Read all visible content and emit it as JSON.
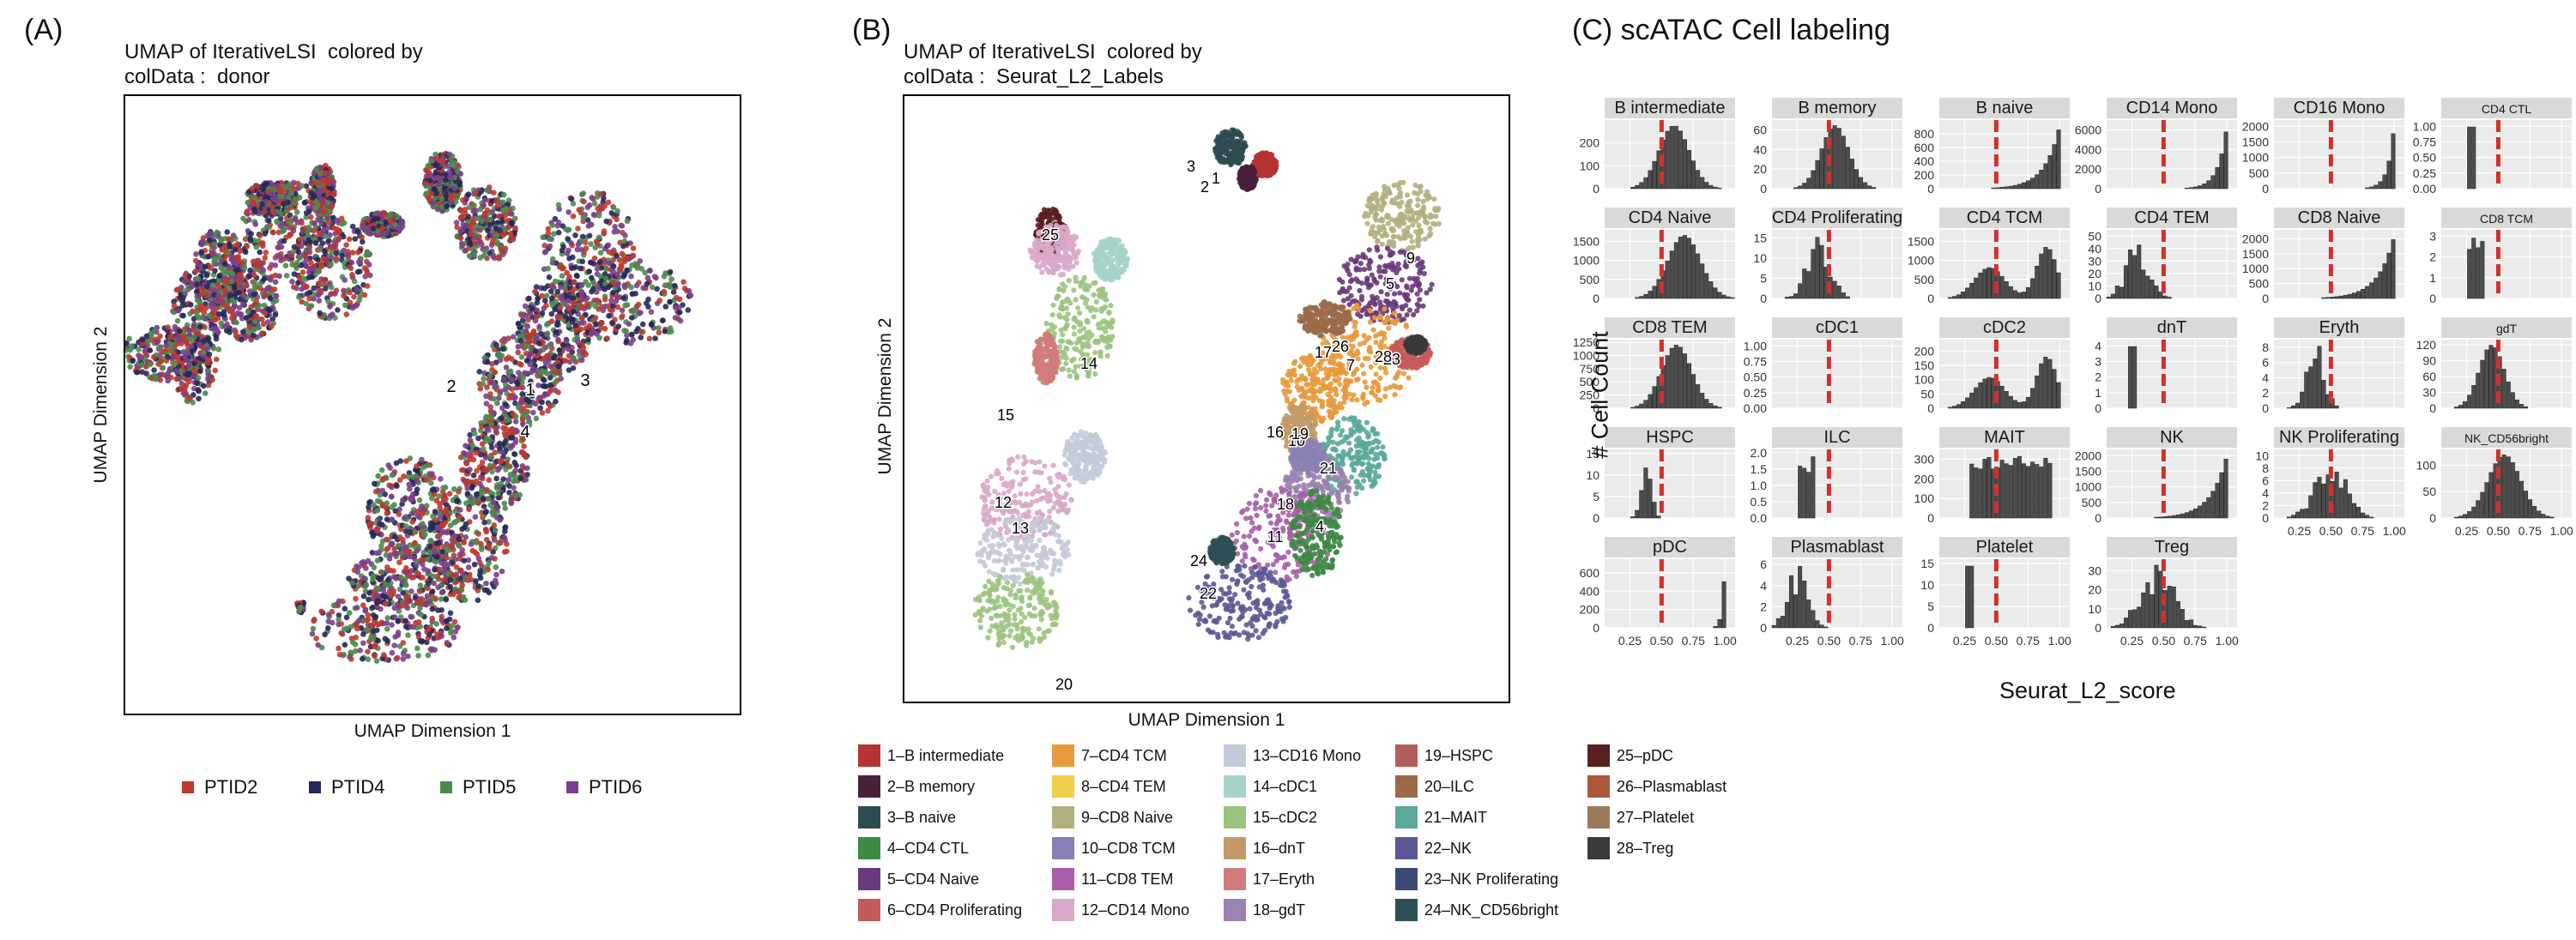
{
  "panels": {
    "a_label": "(A)",
    "b_label": "(B)",
    "c_label": "(C) scATAC Cell labeling",
    "a_title": "UMAP of IterativeLSI  colored by\ncolData :  donor",
    "b_title": "UMAP of IterativeLSI  colored by\ncolData :  Seurat_L2_Labels"
  },
  "axes": {
    "umap_x": "UMAP Dimension 1",
    "umap_y": "UMAP Dimension 2",
    "hist_y": "# Cell Count",
    "hist_x": "Seurat_L2_score"
  },
  "donor_legend": [
    {
      "label": "PTID2",
      "color": "#c0392b"
    },
    {
      "label": "PTID4",
      "color": "#23295a"
    },
    {
      "label": "PTID5",
      "color": "#4b8a4c"
    },
    {
      "label": "PTID6",
      "color": "#7a3f8c"
    }
  ],
  "umap_a_labels": [
    "1",
    "2",
    "3",
    "4"
  ],
  "umap_b_labels": [
    "1",
    "2",
    "3",
    "4",
    "5",
    "7",
    "9",
    "10",
    "11",
    "12",
    "13",
    "14",
    "15",
    "16",
    "17",
    "18",
    "19",
    "20",
    "21",
    "22",
    "23",
    "24",
    "25",
    "26",
    "28"
  ],
  "celltype_legend": [
    {
      "label": "1–B intermediate",
      "color": "#b73232"
    },
    {
      "label": "2–B memory",
      "color": "#4a1f3a"
    },
    {
      "label": "3–B naive",
      "color": "#2f4b52"
    },
    {
      "label": "4–CD4 CTL",
      "color": "#3d8a43"
    },
    {
      "label": "5–CD4 Naive",
      "color": "#6a3a7a"
    },
    {
      "label": "6–CD4 Proliferating",
      "color": "#c45a5a"
    },
    {
      "label": "7–CD4 TCM",
      "color": "#e89a3c"
    },
    {
      "label": "8–CD4 TEM",
      "color": "#f0d04a"
    },
    {
      "label": "9–CD8 Naive",
      "color": "#b3b07f"
    },
    {
      "label": "10–CD8 TCM",
      "color": "#8a7fb5"
    },
    {
      "label": "11–CD8 TEM",
      "color": "#a85ea8"
    },
    {
      "label": "12–CD14 Mono",
      "color": "#d9a8c9"
    },
    {
      "label": "13–CD16 Mono",
      "color": "#c3cbd8"
    },
    {
      "label": "14–cDC1",
      "color": "#a6d3c9"
    },
    {
      "label": "15–cDC2",
      "color": "#9bc47f"
    },
    {
      "label": "16–dnT",
      "color": "#c29a6a"
    },
    {
      "label": "17–Eryth",
      "color": "#d17c7c"
    },
    {
      "label": "18–gdT",
      "color": "#9a83b0"
    },
    {
      "label": "19–HSPC",
      "color": "#b3605a"
    },
    {
      "label": "20–ILC",
      "color": "#9a6a4a"
    },
    {
      "label": "21–MAIT",
      "color": "#5aa89a"
    },
    {
      "label": "22–NK",
      "color": "#5a5a95"
    },
    {
      "label": "23–NK Proliferating",
      "color": "#3a4a75"
    },
    {
      "label": "24–NK_CD56bright",
      "color": "#2d4f55"
    },
    {
      "label": "25–pDC",
      "color": "#5a1f1f"
    },
    {
      "label": "26–Plasmablast",
      "color": "#a85a3a"
    },
    {
      "label": "27–Platelet",
      "color": "#9a7a5a"
    },
    {
      "label": "28–Treg",
      "color": "#3a3a3a"
    }
  ],
  "chart_data": {
    "type": "bar",
    "xlabel": "Seurat_L2_score",
    "ylabel": "# Cell Count",
    "x_ticks": [
      "0.25",
      "0.50",
      "0.75",
      "1.00"
    ],
    "threshold": 0.5,
    "facets": [
      {
        "name": "B intermediate",
        "ymax": 300,
        "yticks": [
          "0",
          "100",
          "200"
        ],
        "peak": 0.6,
        "width": 0.12,
        "shape": "normal",
        "xticks": false
      },
      {
        "name": "B memory",
        "ymax": 70,
        "yticks": [
          "0",
          "20",
          "40",
          "60"
        ],
        "peak": 0.55,
        "width": 0.11,
        "shape": "normal",
        "xticks": false
      },
      {
        "name": "B naive",
        "ymax": 1000,
        "yticks": [
          "0",
          "200",
          "400",
          "600",
          "800"
        ],
        "peak": 0.98,
        "width": 0.12,
        "shape": "right",
        "xticks": false
      },
      {
        "name": "CD14 Mono",
        "ymax": 7000,
        "yticks": [
          "0",
          "2000",
          "4000",
          "6000"
        ],
        "peak": 0.99,
        "width": 0.07,
        "shape": "right",
        "xticks": false
      },
      {
        "name": "CD16 Mono",
        "ymax": 2200,
        "yticks": [
          "0",
          "500",
          "1000",
          "1500",
          "2000"
        ],
        "peak": 0.99,
        "width": 0.05,
        "shape": "right",
        "xticks": false
      },
      {
        "name": "CD4 CTL",
        "ymax": 1.1,
        "yticks": [
          "0.00",
          "0.25",
          "0.50",
          "0.75",
          "1.00"
        ],
        "peak": 0.28,
        "width": 0.005,
        "shape": "single",
        "xticks": false,
        "small": true
      },
      {
        "name": "CD4 Naive",
        "ymax": 1800,
        "yticks": [
          "0",
          "500",
          "1000",
          "1500"
        ],
        "peak": 0.68,
        "width": 0.13,
        "shape": "normal",
        "xticks": false
      },
      {
        "name": "CD4 Proliferating",
        "ymax": 17,
        "yticks": [
          "0",
          "5",
          "10",
          "15"
        ],
        "peak": 0.42,
        "width": 0.09,
        "shape": "rough",
        "xticks": false
      },
      {
        "name": "CD4 TCM",
        "ymax": 1800,
        "yticks": [
          "0",
          "500",
          "1000",
          "1500"
        ],
        "peak": 0.75,
        "width": 0.2,
        "shape": "bimodal",
        "xticks": false
      },
      {
        "name": "CD4 TEM",
        "ymax": 55,
        "yticks": [
          "0",
          "10",
          "20",
          "30",
          "40",
          "50"
        ],
        "peak": 0.3,
        "width": 0.09,
        "shape": "rough",
        "xticks": false
      },
      {
        "name": "CD8 Naive",
        "ymax": 2300,
        "yticks": [
          "0",
          "500",
          "1000",
          "1500",
          "2000"
        ],
        "peak": 0.97,
        "width": 0.13,
        "shape": "right",
        "xticks": false
      },
      {
        "name": "CD8 TCM",
        "ymax": 3.3,
        "yticks": [
          "0",
          "1",
          "2",
          "3"
        ],
        "peak": 0.3,
        "width": 0.04,
        "shape": "bars3",
        "xticks": false,
        "small": true
      },
      {
        "name": "CD8 TEM",
        "ymax": 1300,
        "yticks": [
          "0",
          "250",
          "500",
          "750",
          "1000",
          "1250"
        ],
        "peak": 0.62,
        "width": 0.12,
        "shape": "normal",
        "xticks": false
      },
      {
        "name": "cDC1",
        "ymax": 1.1,
        "yticks": [
          "0.00",
          "0.25",
          "0.50",
          "0.75",
          "1.00"
        ],
        "peak": 0.5,
        "width": 0.0,
        "shape": "empty",
        "xticks": false
      },
      {
        "name": "cDC2",
        "ymax": 240,
        "yticks": [
          "0",
          "50",
          "100",
          "150",
          "200"
        ],
        "peak": 0.75,
        "width": 0.2,
        "shape": "bimodal",
        "xticks": false
      },
      {
        "name": "dnT",
        "ymax": 4.4,
        "yticks": [
          "0",
          "1",
          "2",
          "3",
          "4"
        ],
        "peak": 0.25,
        "width": 0.01,
        "shape": "single",
        "xticks": false
      },
      {
        "name": "Eryth",
        "ymax": 9,
        "yticks": [
          "0",
          "2",
          "4",
          "6",
          "8"
        ],
        "peak": 0.38,
        "width": 0.07,
        "shape": "rough",
        "xticks": false
      },
      {
        "name": "gdT",
        "ymax": 130,
        "yticks": [
          "0",
          "30",
          "60",
          "90",
          "120"
        ],
        "peak": 0.45,
        "width": 0.1,
        "shape": "normal",
        "xticks": false,
        "small": true
      },
      {
        "name": "HSPC",
        "ymax": 16,
        "yticks": [
          "0",
          "5",
          "10",
          "15"
        ],
        "peak": 0.38,
        "width": 0.04,
        "shape": "rough",
        "xticks": false
      },
      {
        "name": "ILC",
        "ymax": 2.1,
        "yticks": [
          "0.0",
          "0.5",
          "1.0",
          "1.5",
          "2.0"
        ],
        "peak": 0.3,
        "width": 0.06,
        "shape": "bars3",
        "xticks": false
      },
      {
        "name": "MAIT",
        "ymax": 350,
        "yticks": [
          "0",
          "100",
          "200",
          "300"
        ],
        "peak": 0.7,
        "width": 0.2,
        "shape": "plateau",
        "xticks": false
      },
      {
        "name": "NK",
        "ymax": 2200,
        "yticks": [
          "0",
          "500",
          "1000",
          "1500",
          "2000"
        ],
        "peak": 0.97,
        "width": 0.13,
        "shape": "right",
        "xticks": false
      },
      {
        "name": "NK Proliferating",
        "ymax": 11,
        "yticks": [
          "0",
          "2",
          "4",
          "6",
          "8",
          "10"
        ],
        "peak": 0.5,
        "width": 0.12,
        "shape": "rough",
        "xticks": true
      },
      {
        "name": "NK_CD56bright",
        "ymax": 130,
        "yticks": [
          "0",
          "50",
          "100"
        ],
        "peak": 0.55,
        "width": 0.13,
        "shape": "normal",
        "xticks": true,
        "small": true
      },
      {
        "name": "pDC",
        "ymax": 750,
        "yticks": [
          "0",
          "200",
          "400",
          "600"
        ],
        "peak": 0.98,
        "width": 0.02,
        "shape": "right",
        "xticks": true
      },
      {
        "name": "Plasmablast",
        "ymax": 6.5,
        "yticks": [
          "0",
          "2",
          "4",
          "6"
        ],
        "peak": 0.25,
        "width": 0.08,
        "shape": "rough",
        "xticks": true
      },
      {
        "name": "Platelet",
        "ymax": 16,
        "yticks": [
          "0",
          "5",
          "10",
          "15"
        ],
        "peak": 0.3,
        "width": 0.03,
        "shape": "single",
        "xticks": true
      },
      {
        "name": "Treg",
        "ymax": 36,
        "yticks": [
          "0",
          "10",
          "20",
          "30"
        ],
        "peak": 0.45,
        "width": 0.13,
        "shape": "rough",
        "xticks": true
      }
    ]
  }
}
